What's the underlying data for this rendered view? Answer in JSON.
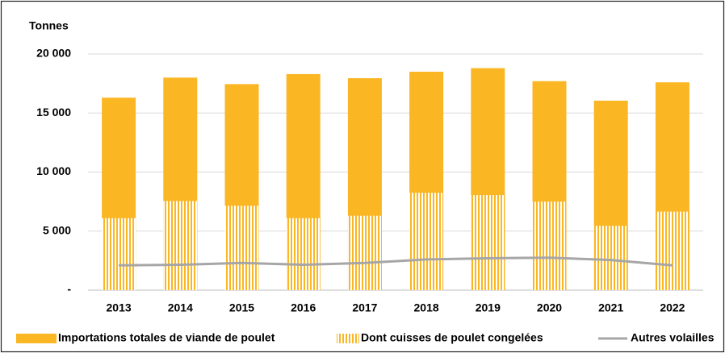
{
  "chart_data": {
    "type": "bar",
    "y_label": "Tonnes",
    "categories": [
      "2013",
      "2014",
      "2015",
      "2016",
      "2017",
      "2018",
      "2019",
      "2020",
      "2021",
      "2022"
    ],
    "series": [
      {
        "name": "Importations totales de viande de poulet",
        "color": "#fbb623",
        "type": "bar",
        "values": [
          16300,
          18000,
          17450,
          18300,
          17950,
          18500,
          18800,
          17700,
          16050,
          17600
        ]
      },
      {
        "name": "Dont cuisses de poulet congelées",
        "color": "#fbb623",
        "type": "bar",
        "pattern": "vertical-stripes",
        "values": [
          6100,
          7550,
          7150,
          6100,
          6300,
          8250,
          8050,
          7500,
          5450,
          6650
        ]
      },
      {
        "name": "Autres volailles",
        "color": "#a6a6a6",
        "type": "line",
        "values": [
          2100,
          2150,
          2300,
          2150,
          2300,
          2600,
          2700,
          2750,
          2550,
          2100
        ]
      }
    ],
    "ylim": [
      0,
      20000
    ],
    "yticks": [
      {
        "value": 0,
        "label": "-"
      },
      {
        "value": 5000,
        "label": "5 000"
      },
      {
        "value": 10000,
        "label": "10 000"
      },
      {
        "value": 15000,
        "label": "15 000"
      },
      {
        "value": 20000,
        "label": "20 000"
      }
    ],
    "grid": true,
    "legend": "bottom"
  }
}
